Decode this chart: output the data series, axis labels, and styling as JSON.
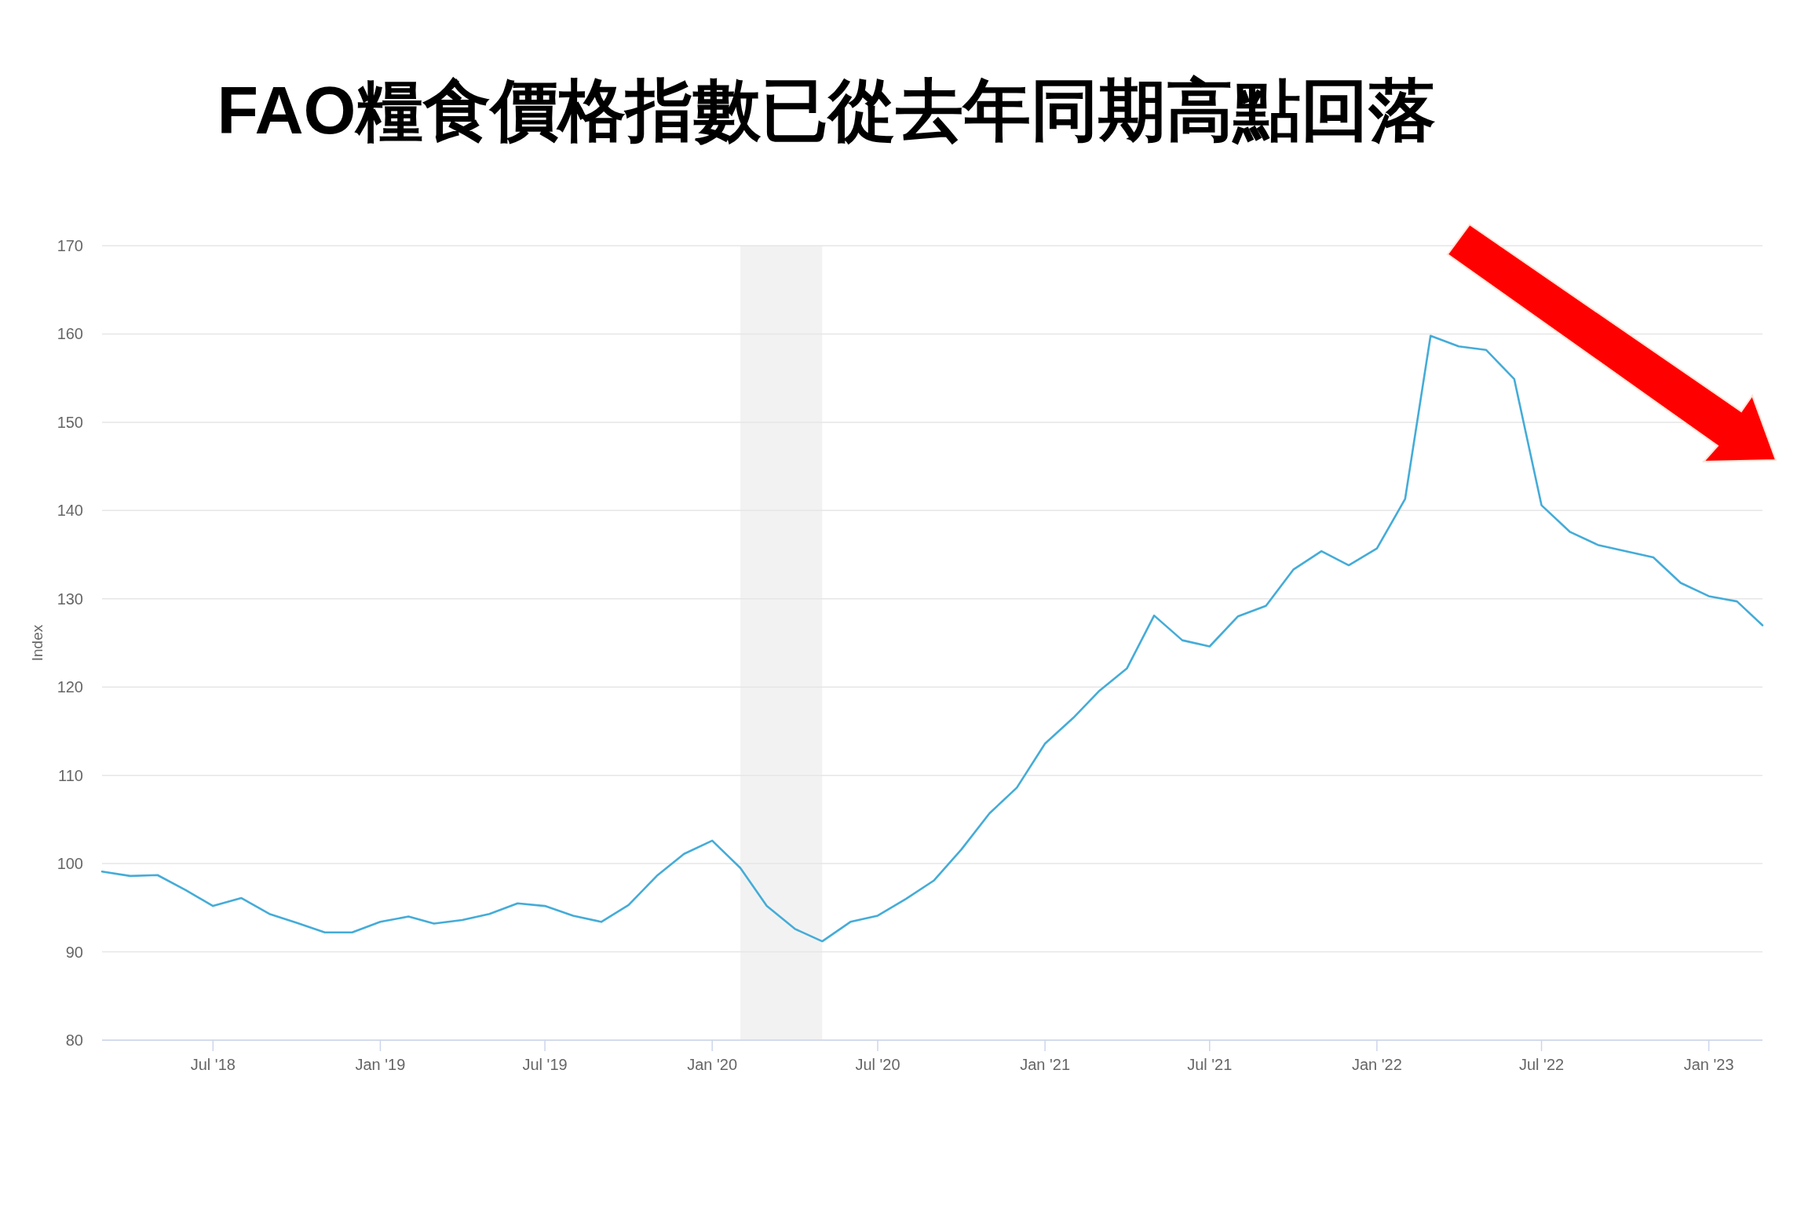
{
  "chart_data": {
    "type": "line",
    "title": "FAO糧食價格指數已從去年同期高點回落",
    "ylabel": "Index",
    "x": [
      "2018-03",
      "2018-04",
      "2018-05",
      "2018-06",
      "2018-07",
      "2018-08",
      "2018-09",
      "2018-10",
      "2018-11",
      "2018-12",
      "2019-01",
      "2019-02",
      "2019-03",
      "2019-04",
      "2019-05",
      "2019-06",
      "2019-07",
      "2019-08",
      "2019-09",
      "2019-10",
      "2019-11",
      "2019-12",
      "2020-01",
      "2020-02",
      "2020-03",
      "2020-04",
      "2020-05",
      "2020-06",
      "2020-07",
      "2020-08",
      "2020-09",
      "2020-10",
      "2020-11",
      "2020-12",
      "2021-01",
      "2021-02",
      "2021-03",
      "2021-04",
      "2021-05",
      "2021-06",
      "2021-07",
      "2021-08",
      "2021-09",
      "2021-10",
      "2021-11",
      "2021-12",
      "2022-01",
      "2022-02",
      "2022-03",
      "2022-04",
      "2022-05",
      "2022-06",
      "2022-07",
      "2022-08",
      "2022-09",
      "2022-10",
      "2022-11",
      "2022-12",
      "2023-01",
      "2023-02",
      "2023-03"
    ],
    "series": [
      {
        "color": "#44acd8",
        "values": [
          99.1,
          98.6,
          98.7,
          97.0,
          95.2,
          96.1,
          94.3,
          93.3,
          92.2,
          92.2,
          93.4,
          94.0,
          93.2,
          93.6,
          94.3,
          95.5,
          95.2,
          94.1,
          93.4,
          95.3,
          98.6,
          101.1,
          102.6,
          99.5,
          95.2,
          92.6,
          91.2,
          93.4,
          94.1,
          96.0,
          98.1,
          101.6,
          105.7,
          108.6,
          113.6,
          116.5,
          119.5,
          122.1,
          128.1,
          125.3,
          124.6,
          128.0,
          129.2,
          133.3,
          135.4,
          133.8,
          135.7,
          141.3,
          159.8,
          158.6,
          158.2,
          154.9,
          140.6,
          137.6,
          136.1,
          135.4,
          134.7,
          131.8,
          130.3,
          129.7,
          127.0
        ]
      }
    ],
    "xlim": [
      "2018-03",
      "2023-03"
    ],
    "xticks": [
      {
        "value": "2018-07",
        "label": "Jul '18"
      },
      {
        "value": "2019-01",
        "label": "Jan '19"
      },
      {
        "value": "2019-07",
        "label": "Jul '19"
      },
      {
        "value": "2020-01",
        "label": "Jan '20"
      },
      {
        "value": "2020-07",
        "label": "Jul '20"
      },
      {
        "value": "2021-01",
        "label": "Jan '21"
      },
      {
        "value": "2021-07",
        "label": "Jul '21"
      },
      {
        "value": "2022-01",
        "label": "Jan '22"
      },
      {
        "value": "2022-07",
        "label": "Jul '22"
      },
      {
        "value": "2023-01",
        "label": "Jan '23"
      }
    ],
    "ylim": [
      80,
      170
    ],
    "yticks": [
      80,
      90,
      100,
      110,
      120,
      130,
      140,
      150,
      160,
      170
    ],
    "grid": "y",
    "bands": [
      {
        "axis": "x",
        "from": "2020-02",
        "to": "2020-05",
        "color": "#f2f2f2"
      }
    ]
  }
}
